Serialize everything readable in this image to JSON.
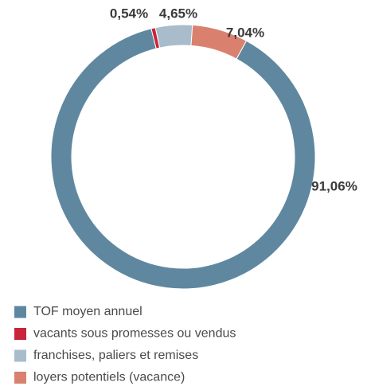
{
  "chart_data": {
    "type": "donut",
    "categories": [
      "TOF moyen annuel",
      "vacants sous promesses ou vendus",
      "franchises, paliers et remises",
      "loyers potentiels (vacance)"
    ],
    "values": [
      91.06,
      0.54,
      4.65,
      7.04
    ],
    "value_labels": [
      "91,06%",
      "0,54%",
      "4,65%",
      "7,04%"
    ],
    "colors": [
      "#5f88a0",
      "#c8243a",
      "#a9bccb",
      "#d9806f"
    ]
  }
}
